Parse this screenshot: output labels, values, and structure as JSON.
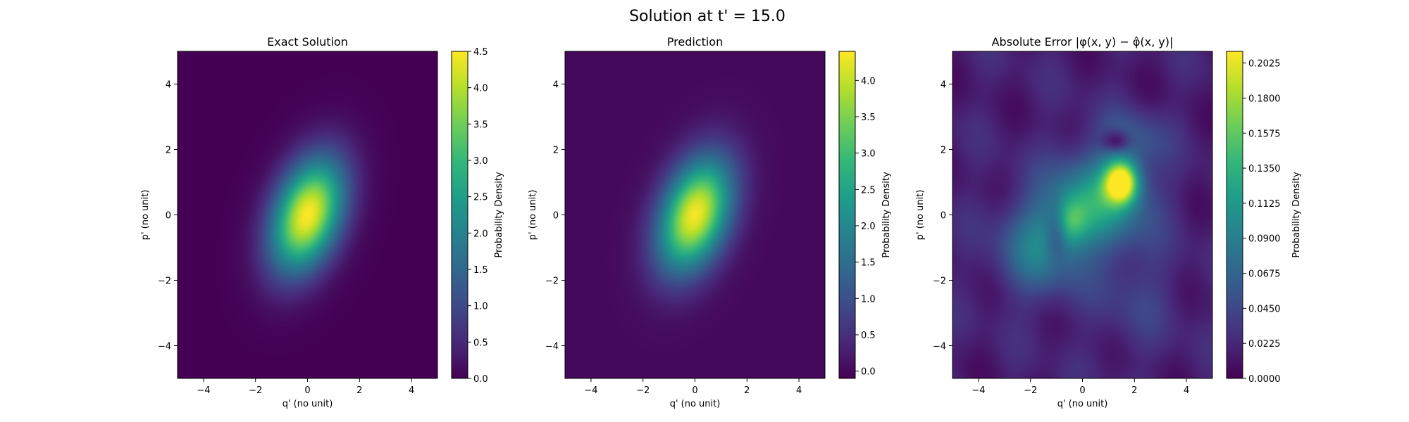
{
  "figure": {
    "title": "Solution at t' = 15.0"
  },
  "colormap": [
    "#440154",
    "#482878",
    "#3e4a89",
    "#31688e",
    "#26828e",
    "#1f9e89",
    "#35b779",
    "#6ece58",
    "#b5de2b",
    "#fde725"
  ],
  "chart_data": [
    {
      "type": "heatmap",
      "title": "Exact Solution",
      "xlabel": "q' (no unit)",
      "ylabel": "p' (no unit)",
      "xlim": [
        -5,
        5
      ],
      "ylim": [
        -5,
        5
      ],
      "xticks": [
        -4,
        -2,
        0,
        2,
        4
      ],
      "yticks": [
        -4,
        -2,
        0,
        2,
        4
      ],
      "colorbar": {
        "label": "Probability Density",
        "range": [
          0.0,
          4.5
        ],
        "ticks": [
          "0.0",
          "0.5",
          "1.0",
          "1.5",
          "2.0",
          "2.5",
          "3.0",
          "3.5",
          "4.0",
          "4.5"
        ]
      },
      "field": {
        "kind": "gaussian",
        "peak": 4.5,
        "center": [
          0,
          0
        ],
        "sigma_major": 1.3,
        "sigma_minor": 0.85,
        "angle_deg": 60
      }
    },
    {
      "type": "heatmap",
      "title": "Prediction",
      "xlabel": "q' (no unit)",
      "ylabel": "p' (no unit)",
      "xlim": [
        -5,
        5
      ],
      "ylim": [
        -5,
        5
      ],
      "xticks": [
        -4,
        -2,
        0,
        2,
        4
      ],
      "yticks": [
        -4,
        -2,
        0,
        2,
        4
      ],
      "colorbar": {
        "label": "Probability Density",
        "range": [
          -0.1,
          4.4
        ],
        "ticks": [
          "0.0",
          "0.5",
          "1.0",
          "1.5",
          "2.0",
          "2.5",
          "3.0",
          "3.5",
          "4.0"
        ]
      },
      "field": {
        "kind": "gaussian",
        "peak": 4.35,
        "center": [
          0,
          0
        ],
        "sigma_major": 1.3,
        "sigma_minor": 0.85,
        "angle_deg": 60
      }
    },
    {
      "type": "heatmap",
      "title": "Absolute Error |φ(x, y) − φ̂(x, y)|",
      "xlabel": "q' (no unit)",
      "ylabel": "p' (no unit)",
      "xlim": [
        -5,
        5
      ],
      "ylim": [
        -5,
        5
      ],
      "xticks": [
        -4,
        -2,
        0,
        2,
        4
      ],
      "yticks": [
        -4,
        -2,
        0,
        2,
        4
      ],
      "colorbar": {
        "label": "Probability Density",
        "range": [
          0.0,
          0.21
        ],
        "ticks": [
          "0.0000",
          "0.0225",
          "0.0450",
          "0.0675",
          "0.0900",
          "0.1125",
          "0.1350",
          "0.1575",
          "0.1800",
          "0.2025"
        ]
      },
      "field": {
        "kind": "blobs",
        "background": 0.03,
        "max_error": 0.21,
        "blobs": [
          {
            "x": 1.5,
            "y": 1.0,
            "amp": 0.18,
            "sx": 0.45,
            "sy": 0.45
          },
          {
            "x": 0.6,
            "y": 0.4,
            "amp": 0.1,
            "sx": 1.3,
            "sy": 1.0
          },
          {
            "x": -1.6,
            "y": -1.0,
            "amp": 0.07,
            "sx": 1.1,
            "sy": 1.0
          },
          {
            "x": -0.5,
            "y": -0.2,
            "amp": 0.06,
            "sx": 0.5,
            "sy": 0.5
          },
          {
            "x": 1.8,
            "y": 2.3,
            "amp": 0.04,
            "sx": 0.9,
            "sy": 0.6
          },
          {
            "x": 2.0,
            "y": -2.5,
            "amp": 0.02,
            "sx": 1.2,
            "sy": 1.2
          }
        ],
        "troughs": [
          {
            "x": 1.3,
            "y": 2.25,
            "depth": 0.06,
            "sx": 0.4,
            "sy": 0.25
          },
          {
            "x": -1.0,
            "y": -0.5,
            "depth": 0.05,
            "sx": 0.3,
            "sy": 0.6
          }
        ]
      }
    }
  ]
}
